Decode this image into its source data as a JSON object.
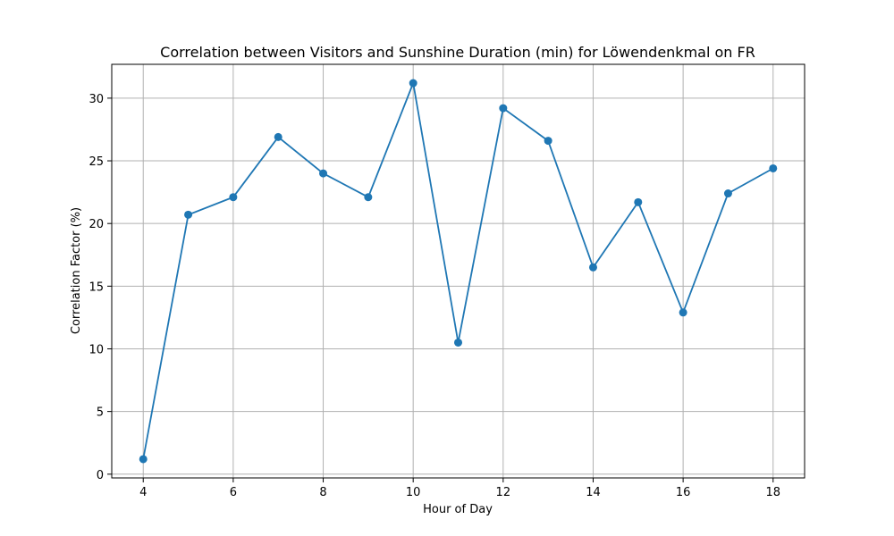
{
  "chart_data": {
    "type": "line",
    "title": "Correlation between Visitors and Sunshine Duration (min) for Löwendenkmal on FR",
    "xlabel": "Hour of Day",
    "ylabel": "Correlation Factor (%)",
    "x": [
      4,
      5,
      6,
      7,
      8,
      9,
      10,
      11,
      12,
      13,
      14,
      15,
      16,
      17,
      18
    ],
    "series": [
      {
        "values": [
          1.2,
          20.7,
          22.1,
          26.9,
          24.0,
          22.1,
          31.2,
          10.5,
          29.2,
          26.6,
          16.5,
          21.7,
          12.9,
          22.4,
          24.4
        ]
      }
    ],
    "xlim": [
      3.3,
      18.7
    ],
    "ylim": [
      -0.3,
      32.7
    ],
    "x_ticks": [
      "4",
      "6",
      "8",
      "10",
      "12",
      "14",
      "16",
      "18"
    ],
    "y_ticks": [
      "0",
      "5",
      "10",
      "15",
      "20",
      "25",
      "30"
    ],
    "grid": true,
    "colors": {
      "line": "#1f77b4",
      "grid": "#b0b0b0"
    }
  }
}
